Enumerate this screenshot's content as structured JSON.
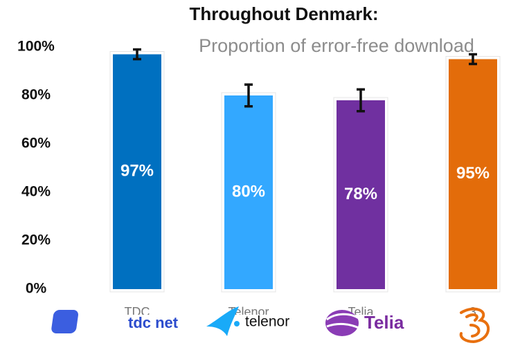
{
  "chart_data": {
    "type": "bar",
    "title": "Throughout Denmark:",
    "subtitle": "Proportion of error-free download",
    "categories": [
      "TDC",
      "Telenor",
      "Telia",
      "3"
    ],
    "values": [
      97,
      80,
      78,
      95
    ],
    "value_labels": [
      "97%",
      "80%",
      "78%",
      "95%"
    ],
    "errors": [
      2,
      4.5,
      4.5,
      2
    ],
    "colors": [
      "#0070c0",
      "#33a8ff",
      "#7030a0",
      "#e36c0a"
    ],
    "ylim": [
      0,
      100
    ],
    "yticks": [
      {
        "value": 0,
        "label": "0%"
      },
      {
        "value": 20,
        "label": "20%"
      },
      {
        "value": 40,
        "label": "40%"
      },
      {
        "value": 60,
        "label": "60%"
      },
      {
        "value": 80,
        "label": "80%"
      },
      {
        "value": 100,
        "label": "100%"
      }
    ],
    "grid": false,
    "logos": [
      "tdc net",
      "telenor",
      "Telia"
    ]
  }
}
